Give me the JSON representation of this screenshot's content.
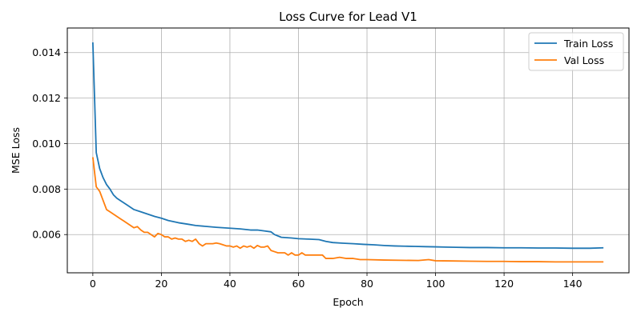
{
  "chart_data": {
    "type": "line",
    "title": "Loss Curve for Lead V1",
    "xlabel": "Epoch",
    "ylabel": "MSE Loss",
    "xlim": [
      -7.45,
      156.45
    ],
    "ylim": [
      0.00432,
      0.01508
    ],
    "xticks": [
      0,
      20,
      40,
      60,
      80,
      100,
      120,
      140
    ],
    "yticks": [
      0.006,
      0.008,
      0.01,
      0.012,
      0.014
    ],
    "ytick_labels": [
      "0.006",
      "0.008",
      "0.010",
      "0.012",
      "0.014"
    ],
    "grid": true,
    "legend_position": "top-right",
    "series": [
      {
        "name": "Train Loss",
        "color": "#1f77b4",
        "x": [
          0,
          1,
          2,
          3,
          4,
          5,
          6,
          7,
          8,
          10,
          12,
          14,
          16,
          18,
          20,
          22,
          25,
          28,
          30,
          33,
          36,
          40,
          43,
          46,
          48,
          50,
          52,
          53,
          55,
          58,
          60,
          63,
          66,
          68,
          70,
          73,
          76,
          79,
          82,
          85,
          88,
          91,
          94,
          97,
          100,
          103,
          106,
          110,
          115,
          120,
          125,
          130,
          135,
          140,
          145,
          149
        ],
        "y": [
          0.01445,
          0.0096,
          0.0089,
          0.0085,
          0.0082,
          0.008,
          0.00775,
          0.0076,
          0.0075,
          0.0073,
          0.0071,
          0.007,
          0.0069,
          0.0068,
          0.00672,
          0.00662,
          0.00652,
          0.00645,
          0.0064,
          0.00636,
          0.00632,
          0.00628,
          0.00625,
          0.0062,
          0.0062,
          0.00616,
          0.00612,
          0.006,
          0.00588,
          0.00585,
          0.00582,
          0.0058,
          0.00578,
          0.0057,
          0.00565,
          0.00562,
          0.0056,
          0.00557,
          0.00555,
          0.00552,
          0.0055,
          0.00549,
          0.00548,
          0.00547,
          0.00546,
          0.00545,
          0.00544,
          0.00543,
          0.00543,
          0.00542,
          0.00542,
          0.00541,
          0.00541,
          0.0054,
          0.0054,
          0.00542
        ]
      },
      {
        "name": "Val Loss",
        "color": "#ff7f0e",
        "x": [
          0,
          1,
          2,
          3,
          4,
          5,
          6,
          7,
          8,
          9,
          10,
          11,
          12,
          13,
          14,
          15,
          16,
          17,
          18,
          19,
          20,
          21,
          22,
          23,
          24,
          25,
          26,
          27,
          28,
          29,
          30,
          31,
          32,
          33,
          34,
          35,
          36,
          37,
          38,
          39,
          40,
          41,
          42,
          43,
          44,
          45,
          46,
          47,
          48,
          49,
          50,
          51,
          52,
          53,
          54,
          55,
          56,
          57,
          58,
          59,
          60,
          61,
          62,
          63,
          64,
          65,
          66,
          67,
          68,
          70,
          72,
          74,
          76,
          78,
          80,
          85,
          90,
          95,
          98,
          100,
          105,
          110,
          115,
          120,
          125,
          130,
          135,
          140,
          145,
          149
        ],
        "y": [
          0.0094,
          0.0081,
          0.0079,
          0.0075,
          0.0071,
          0.007,
          0.0069,
          0.0068,
          0.0067,
          0.0066,
          0.0065,
          0.0064,
          0.0063,
          0.00635,
          0.0062,
          0.0061,
          0.0061,
          0.006,
          0.0059,
          0.00605,
          0.006,
          0.0059,
          0.0059,
          0.0058,
          0.00585,
          0.0058,
          0.0058,
          0.0057,
          0.00575,
          0.0057,
          0.0058,
          0.0056,
          0.0055,
          0.0056,
          0.0056,
          0.0056,
          0.00563,
          0.0056,
          0.00555,
          0.0055,
          0.0055,
          0.00545,
          0.0055,
          0.0054,
          0.0055,
          0.00545,
          0.0055,
          0.0054,
          0.00552,
          0.00545,
          0.00545,
          0.0055,
          0.0053,
          0.00525,
          0.0052,
          0.0052,
          0.0052,
          0.0051,
          0.0052,
          0.0051,
          0.0051,
          0.0052,
          0.0051,
          0.0051,
          0.0051,
          0.0051,
          0.0051,
          0.0051,
          0.00495,
          0.00495,
          0.005,
          0.00495,
          0.00495,
          0.0049,
          0.0049,
          0.00488,
          0.00487,
          0.00486,
          0.0049,
          0.00485,
          0.00484,
          0.00483,
          0.00482,
          0.00482,
          0.00481,
          0.00481,
          0.0048,
          0.0048,
          0.0048,
          0.0048
        ]
      }
    ]
  }
}
